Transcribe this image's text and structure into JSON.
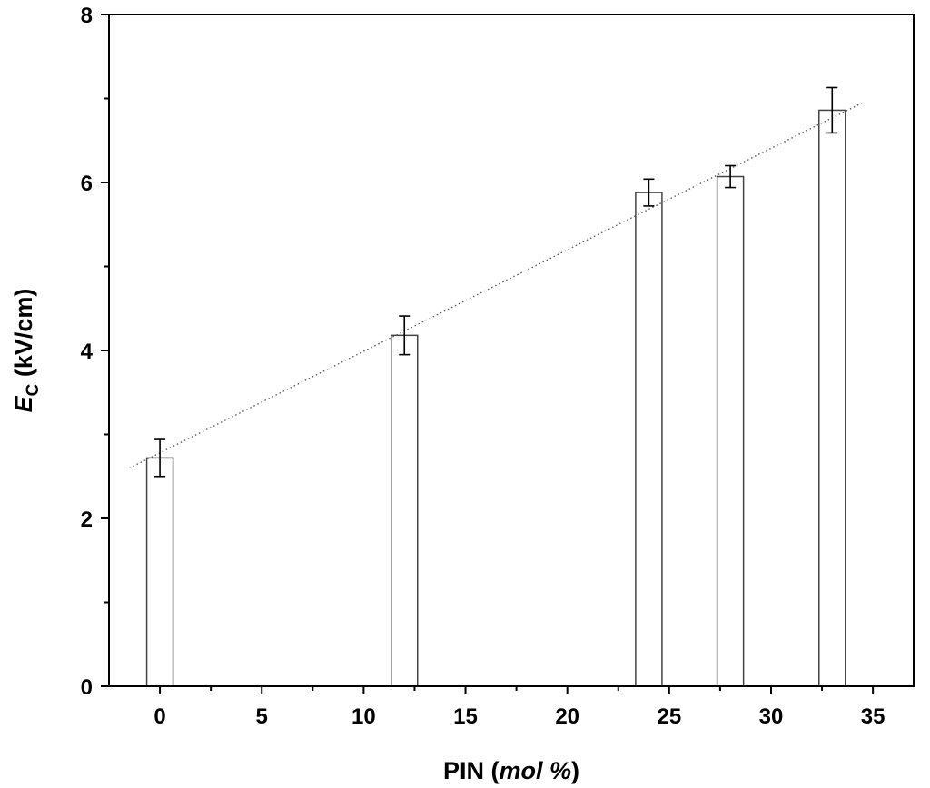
{
  "chart_data": {
    "type": "bar",
    "title": "",
    "x": [
      0,
      12,
      24,
      28,
      33
    ],
    "values": [
      2.72,
      4.18,
      5.88,
      6.07,
      6.86
    ],
    "errors": [
      0.22,
      0.23,
      0.16,
      0.13,
      0.27
    ],
    "xlabel": "PIN",
    "xlabel_unit": "mol %",
    "ylabel_symbol": "E",
    "ylabel_subscript": "C",
    "ylabel_unit": "(kV/cm)",
    "xlim": [
      -2.5,
      37
    ],
    "ylim": [
      0,
      8
    ],
    "xticks": [
      0,
      5,
      10,
      15,
      20,
      25,
      30,
      35
    ],
    "yticks": [
      0,
      2,
      4,
      6,
      8
    ],
    "trendline": {
      "style": "dotted",
      "from": [
        -1.5,
        2.6
      ],
      "to": [
        34.5,
        6.95
      ]
    },
    "grid": false,
    "legend": "none",
    "bar_fill": "#ffffff",
    "bar_stroke": "#444444"
  }
}
